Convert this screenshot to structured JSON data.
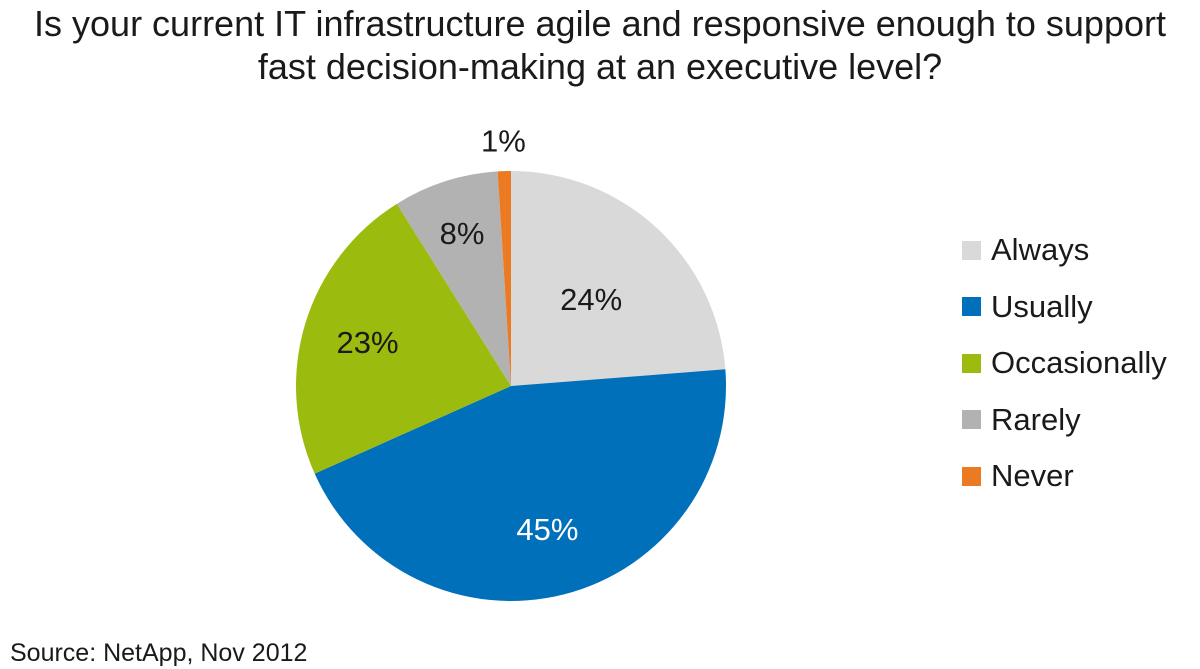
{
  "title": {
    "line1": "Is your current IT infrastructure agile and responsive enough to support",
    "line2": "fast decision-making at an executive level?"
  },
  "chart_data": {
    "type": "pie",
    "categories": [
      "Always",
      "Usually",
      "Occasionally",
      "Rarely",
      "Never"
    ],
    "values": [
      24,
      45,
      23,
      8,
      1
    ],
    "labels": [
      "24%",
      "45%",
      "23%",
      "8%",
      "1%"
    ],
    "colors": [
      "#d9d9d9",
      "#0070ba",
      "#9bbb0e",
      "#b2b2b2",
      "#ec7a23"
    ],
    "label_colors": [
      "#1a1a1a",
      "#ffffff",
      "#1a1a1a",
      "#1a1a1a",
      "#1a1a1a"
    ],
    "legend_position": "right",
    "start": "12 o'clock",
    "direction": "clockwise"
  },
  "source": "Source: NetApp, Nov 2012"
}
